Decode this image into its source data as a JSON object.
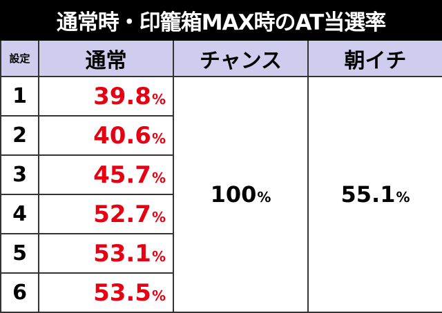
{
  "title": "通常時・印籠箱MAX時のAT当選率",
  "table": {
    "header": [
      "設定",
      "通常",
      "チャンス",
      "朝イチ"
    ],
    "rows": [
      {
        "setting": "1",
        "normal": {
          "number": "39.8",
          "unit": "%"
        }
      },
      {
        "setting": "2",
        "normal": {
          "number": "40.6",
          "unit": "%"
        }
      },
      {
        "setting": "3",
        "normal": {
          "number": "45.7",
          "unit": "%"
        }
      },
      {
        "setting": "4",
        "normal": {
          "number": "52.7",
          "unit": "%"
        }
      },
      {
        "setting": "5",
        "normal": {
          "number": "53.1",
          "unit": "%"
        }
      },
      {
        "setting": "6",
        "normal": {
          "number": "53.5",
          "unit": "%"
        }
      }
    ],
    "chance": {
      "number": "100",
      "unit": "%"
    },
    "morning": {
      "number": "55.1",
      "unit": "%"
    }
  }
}
